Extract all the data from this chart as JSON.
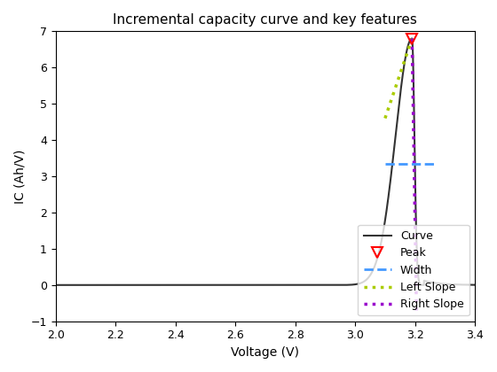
{
  "title": "Incremental capacity curve and key features",
  "xlabel": "Voltage (V)",
  "ylabel": "IC (Ah/V)",
  "xlim": [
    2.0,
    3.4
  ],
  "ylim": [
    -1.0,
    7.0
  ],
  "xticks": [
    2.0,
    2.2,
    2.4,
    2.6,
    2.8,
    3.0,
    3.2,
    3.4
  ],
  "yticks": [
    -1,
    0,
    1,
    2,
    3,
    4,
    5,
    6,
    7
  ],
  "peak_x": 3.19,
  "peak_y": 6.8,
  "width_x1": 3.1,
  "width_x2": 3.27,
  "width_y": 3.35,
  "left_slope_x1": 3.1,
  "left_slope_y1": 4.6,
  "left_slope_x2": 3.19,
  "left_slope_y2": 6.8,
  "right_slope_x1": 3.19,
  "right_slope_y1": 6.8,
  "right_slope_x2": 3.205,
  "right_slope_y2": -0.75,
  "curve_color": "#333333",
  "peak_color": "#ff0000",
  "width_color": "#4499ff",
  "left_slope_color": "#aacc00",
  "right_slope_color": "#9900cc",
  "legend_labels": [
    "Curve",
    "Peak",
    "Width",
    "Left Slope",
    "Right Slope"
  ],
  "figsize": [
    5.6,
    4.2
  ],
  "dpi": 100
}
